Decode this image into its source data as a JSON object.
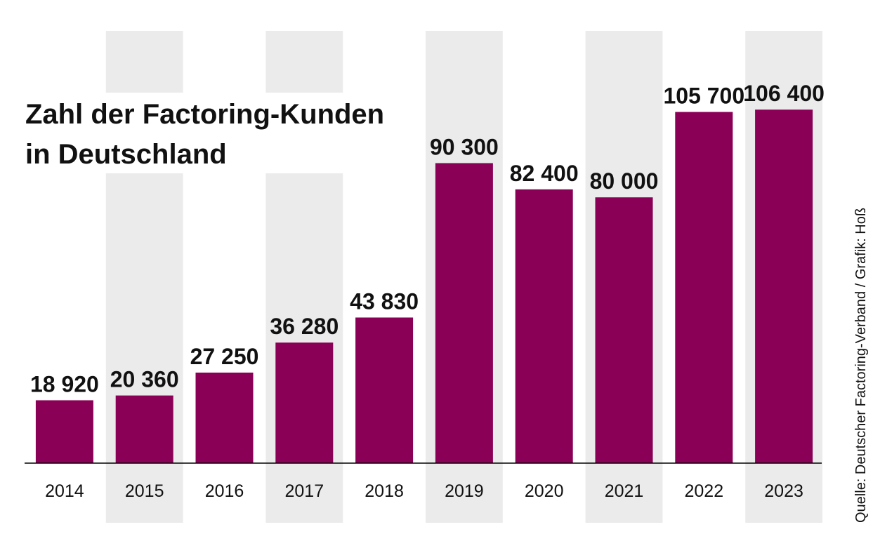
{
  "chart_data": {
    "type": "bar",
    "title_lines": [
      "Zahl der Factoring-Kunden",
      "in Deutschland"
    ],
    "categories": [
      "2014",
      "2015",
      "2016",
      "2017",
      "2018",
      "2019",
      "2020",
      "2021",
      "2022",
      "2023"
    ],
    "values": [
      18920,
      20360,
      27250,
      36280,
      43830,
      90300,
      82400,
      80000,
      105700,
      106400
    ],
    "value_labels": [
      "18 920",
      "20 360",
      "27 250",
      "36 280",
      "43 830",
      "90 300",
      "82 400",
      "80 000",
      "105 700",
      "106 400"
    ],
    "ylim": [
      0,
      113000
    ],
    "grid": false,
    "source": "Quelle: Deutscher Factoring-Verband / Grafik: Hoß",
    "colors": {
      "bar": "#8b0057",
      "band": "#ebebeb",
      "axis": "#000000"
    }
  }
}
